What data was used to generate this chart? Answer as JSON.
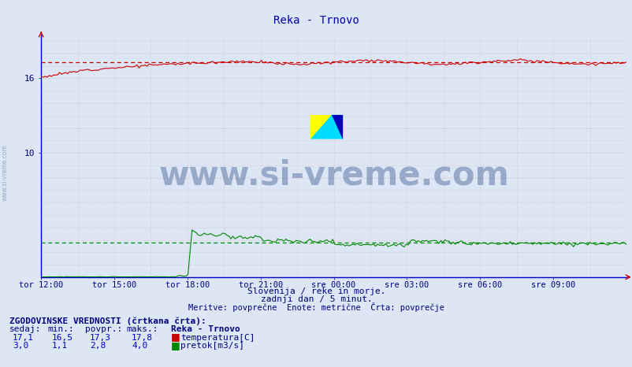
{
  "title": "Reka - Trnovo",
  "bg_color": "#dce6f5",
  "plot_bg_color": "#dce6f5",
  "xticklabels": [
    "tor 12:00",
    "tor 15:00",
    "tor 18:00",
    "tor 21:00",
    "sre 00:00",
    "sre 03:00",
    "sre 06:00",
    "sre 09:00"
  ],
  "ytick_vals": [
    10,
    16
  ],
  "ymin": 0,
  "ymax": 19.5,
  "temp_color": "#cc0000",
  "flow_color": "#008800",
  "avg_temp": 17.3,
  "avg_flow": 2.8,
  "watermark": "www.si-vreme.com",
  "watermark_color": "#1a3a7a",
  "subtitle1": "Slovenija / reke in morje.",
  "subtitle2": "zadnji dan / 5 minut.",
  "subtitle3": "Meritve: povprečne  Enote: metrične  Črta: povprečje",
  "footer_header": "ZGODOVINSKE VREDNOSTI (črtkana črta):",
  "col_headers": [
    "sedaj:",
    "min.:",
    "povpr.:",
    "maks.:",
    "Reka - Trnovo"
  ],
  "row1": [
    "17,1",
    "16,5",
    "17,3",
    "17,8"
  ],
  "row1_label": "temperatura[C]",
  "row2": [
    "3,0",
    "1,1",
    "2,8",
    "4,0"
  ],
  "row2_label": "pretok[m3/s]",
  "n_points": 288,
  "axis_color": "#0000cc",
  "tick_label_color": "#000080",
  "subtitle_color": "#000080",
  "grid_color": "#e8b0b0",
  "grid_color2": "#c8c8d8"
}
